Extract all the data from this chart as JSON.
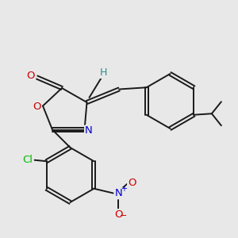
{
  "bg_color": "#e8e8e8",
  "bond_color": "#1a1a1a",
  "atom_colors": {
    "O": "#cc0000",
    "N": "#0000cc",
    "Cl": "#00bb00",
    "C": "#1a1a1a",
    "H": "#2a9090"
  },
  "fig_width": 3.0,
  "fig_height": 3.0,
  "dpi": 100
}
